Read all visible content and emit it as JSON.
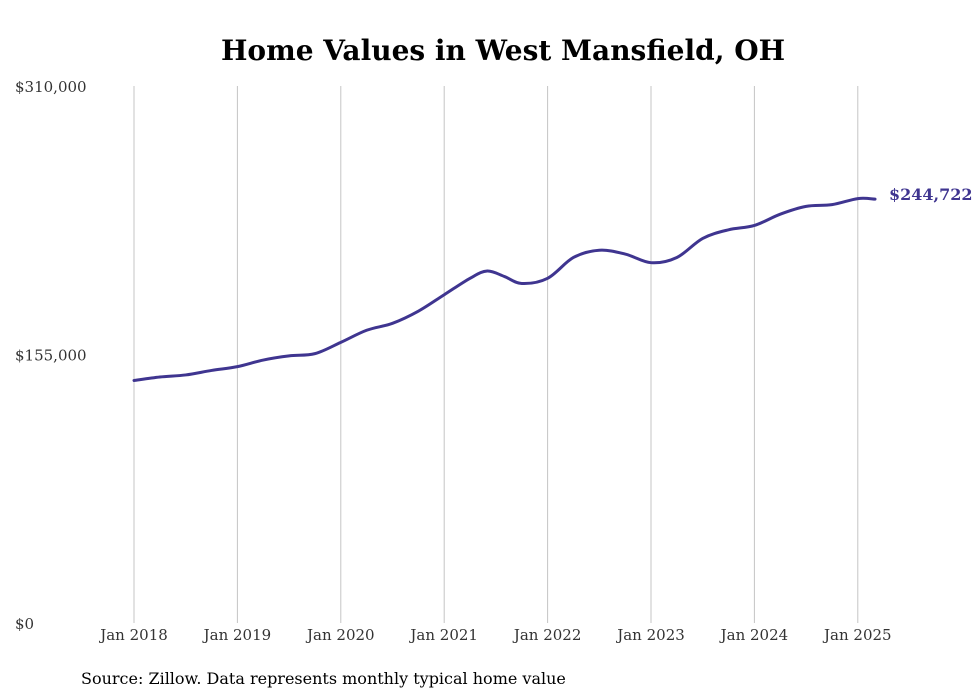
{
  "chart_data": {
    "type": "line",
    "title": "Home Values in West Mansfield, OH",
    "xlabel": "",
    "ylabel": "",
    "source": "Source: Zillow. Data represents monthly typical home value",
    "ylim": [
      0,
      310000
    ],
    "yticks": [
      {
        "value": 0,
        "label": "$0"
      },
      {
        "value": 155000,
        "label": "$155,000"
      },
      {
        "value": 310000,
        "label": "$310,000"
      }
    ],
    "xticks": [
      {
        "value": "2018-01",
        "label": "Jan 2018"
      },
      {
        "value": "2019-01",
        "label": "Jan 2019"
      },
      {
        "value": "2020-01",
        "label": "Jan 2020"
      },
      {
        "value": "2021-01",
        "label": "Jan 2021"
      },
      {
        "value": "2022-01",
        "label": "Jan 2022"
      },
      {
        "value": "2023-01",
        "label": "Jan 2023"
      },
      {
        "value": "2024-01",
        "label": "Jan 2024"
      },
      {
        "value": "2025-01",
        "label": "Jan 2025"
      }
    ],
    "xlim": [
      "2018-01",
      "2025-03"
    ],
    "grid": {
      "vertical": true,
      "horizontal": false
    },
    "legend": "none",
    "line_color": "#3f3590",
    "end_label": "$244,722",
    "series": [
      {
        "points": [
          {
            "x": "2018-01",
            "y": 140000
          },
          {
            "x": "2018-04",
            "y": 142000
          },
          {
            "x": "2018-07",
            "y": 143200
          },
          {
            "x": "2018-10",
            "y": 145800
          },
          {
            "x": "2019-01",
            "y": 148000
          },
          {
            "x": "2019-04",
            "y": 151800
          },
          {
            "x": "2019-07",
            "y": 154200
          },
          {
            "x": "2019-10",
            "y": 155500
          },
          {
            "x": "2020-01",
            "y": 162000
          },
          {
            "x": "2020-04",
            "y": 169000
          },
          {
            "x": "2020-07",
            "y": 173000
          },
          {
            "x": "2020-10",
            "y": 180000
          },
          {
            "x": "2021-01",
            "y": 189500
          },
          {
            "x": "2021-04",
            "y": 199000
          },
          {
            "x": "2021-06",
            "y": 203200
          },
          {
            "x": "2021-08",
            "y": 200000
          },
          {
            "x": "2021-10",
            "y": 196000
          },
          {
            "x": "2022-01",
            "y": 199000
          },
          {
            "x": "2022-04",
            "y": 211000
          },
          {
            "x": "2022-07",
            "y": 215200
          },
          {
            "x": "2022-10",
            "y": 213000
          },
          {
            "x": "2023-01",
            "y": 208000
          },
          {
            "x": "2023-04",
            "y": 211000
          },
          {
            "x": "2023-07",
            "y": 222000
          },
          {
            "x": "2023-10",
            "y": 227000
          },
          {
            "x": "2024-01",
            "y": 229500
          },
          {
            "x": "2024-04",
            "y": 236000
          },
          {
            "x": "2024-07",
            "y": 240500
          },
          {
            "x": "2024-10",
            "y": 241500
          },
          {
            "x": "2025-01",
            "y": 245000
          },
          {
            "x": "2025-03",
            "y": 244722
          }
        ]
      }
    ]
  }
}
